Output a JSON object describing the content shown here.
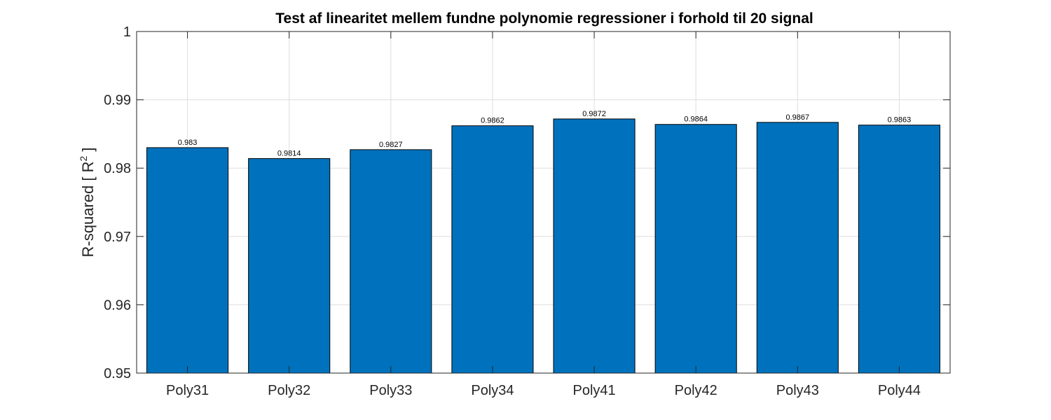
{
  "chart_data": {
    "type": "bar",
    "title": "Test af linearitet mellem fundne polynomie regressioner i forhold til 20 signal",
    "xlabel": "",
    "ylabel_main": "R-squared [ R",
    "ylabel_sup": "2",
    "ylabel_end": " ]",
    "categories": [
      "Poly31",
      "Poly32",
      "Poly33",
      "Poly34",
      "Poly41",
      "Poly42",
      "Poly43",
      "Poly44"
    ],
    "values": [
      0.983,
      0.9814,
      0.9827,
      0.9862,
      0.9872,
      0.9864,
      0.9867,
      0.9863
    ],
    "value_labels": [
      "0.983",
      "0.9814",
      "0.9827",
      "0.9862",
      "0.9872",
      "0.9864",
      "0.9867",
      "0.9863"
    ],
    "ylim": [
      0.95,
      1
    ],
    "yticks": [
      0.95,
      0.96,
      0.97,
      0.98,
      0.99,
      1
    ],
    "ytick_labels": [
      "0.95",
      "0.96",
      "0.97",
      "0.98",
      "0.99",
      "1"
    ],
    "grid": true,
    "bar_color": "#0072bd"
  }
}
